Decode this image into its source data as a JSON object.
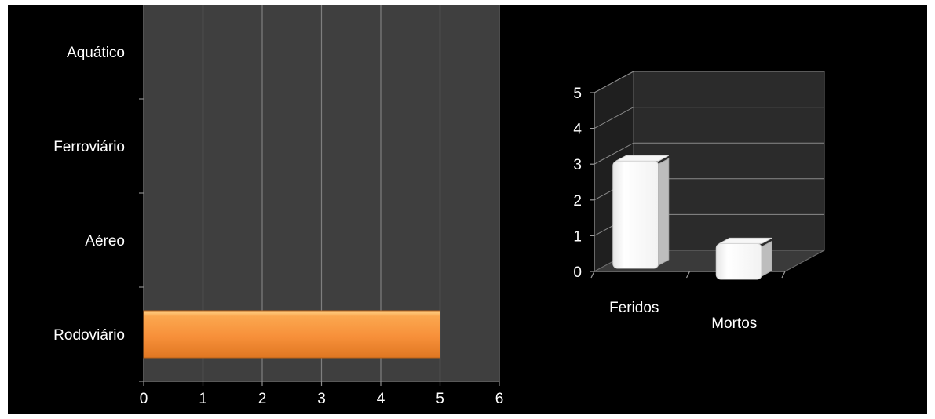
{
  "colors": {
    "background": "#000000",
    "plot_area": "#3f3f3f",
    "gridline": "#7f7f7f",
    "bar_fill": "#f7903a",
    "bar_3d_face": "#ffffff",
    "text": "#ffffff"
  },
  "chart_data": [
    {
      "type": "bar",
      "orientation": "horizontal",
      "categories": [
        "Rodoviário",
        "Aéreo",
        "Ferroviário",
        "Aquático"
      ],
      "values": [
        5,
        0,
        0,
        0
      ],
      "x_ticks": [
        "0",
        "1",
        "2",
        "3",
        "4",
        "5",
        "6"
      ],
      "xlim": [
        0,
        6
      ],
      "grid": true,
      "title": "",
      "xlabel": "",
      "ylabel": ""
    },
    {
      "type": "bar",
      "style": "3d-column",
      "categories": [
        "Feridos",
        "Mortos"
      ],
      "values": [
        3,
        1
      ],
      "y_ticks": [
        "0",
        "1",
        "2",
        "3",
        "4",
        "5"
      ],
      "ylim": [
        0,
        5
      ],
      "grid": true,
      "title": "",
      "xlabel": "",
      "ylabel": ""
    }
  ]
}
